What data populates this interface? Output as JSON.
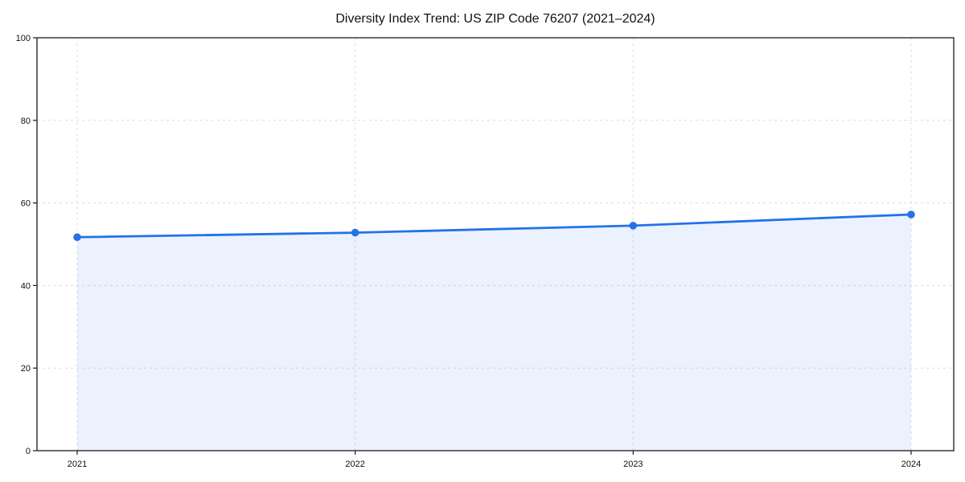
{
  "chart_data": {
    "type": "area",
    "title": "Diversity Index Trend: US ZIP Code 76207 (2021–2024)",
    "categories": [
      "2021",
      "2022",
      "2023",
      "2024"
    ],
    "series": [
      {
        "name": "Diversity Index",
        "values": [
          51.7,
          52.8,
          54.5,
          57.2
        ]
      }
    ],
    "xlabel": "",
    "ylabel": "",
    "ylim": [
      0,
      100
    ],
    "yticks": [
      0,
      20,
      40,
      60,
      80,
      100
    ],
    "grid": "dashed",
    "legend": "none",
    "line_color": "#2372e8",
    "marker_color": "#2372e8",
    "fill_color": "#2372e8",
    "fill_opacity": 0.09,
    "grid_color": "#dcdcdc",
    "axis_color": "#1a1a1a",
    "text_color": "#111111",
    "background_color": "#ffffff"
  }
}
